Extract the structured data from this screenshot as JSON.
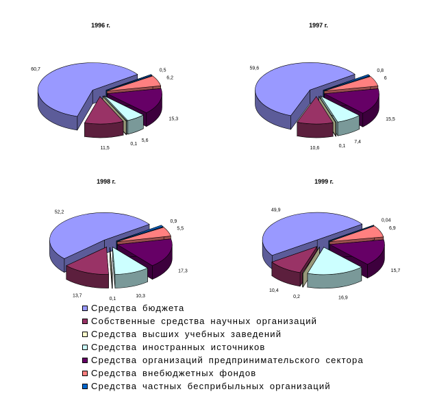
{
  "chart_data": [
    {
      "type": "pie",
      "title": "1996 г.",
      "categories": [
        "Средства бюджета",
        "Собственные средства научных организаций",
        "Средства высших учебных заведений",
        "Средства иностранных источников",
        "Средства организаций предпринимательского сектора",
        "Средства внебюджетных фондов",
        "Средства частных бесприбыльных организаций"
      ],
      "values": [
        60.7,
        11.5,
        0.1,
        5.6,
        15.3,
        6.2,
        0.5
      ],
      "labels": [
        "60,7",
        "11,5",
        "0,1",
        "5,6",
        "15,3",
        "6,2",
        "0,5"
      ]
    },
    {
      "type": "pie",
      "title": "1997 г.",
      "categories": [
        "Средства бюджета",
        "Собственные средства научных организаций",
        "Средства высших учебных заведений",
        "Средства иностранных источников",
        "Средства организаций предпринимательского сектора",
        "Средства внебюджетных фондов",
        "Средства частных бесприбыльных организаций"
      ],
      "values": [
        59.6,
        10.6,
        0.1,
        7.4,
        15.5,
        6,
        0.8
      ],
      "labels": [
        "59,6",
        "10,6",
        "0,1",
        "7,4",
        "15,5",
        "6",
        "0,8"
      ]
    },
    {
      "type": "pie",
      "title": "1998 г.",
      "categories": [
        "Средства бюджета",
        "Собственные средства научных организаций",
        "Средства высших учебных заведений",
        "Средства иностранных источников",
        "Средства организаций предпринимательского сектора",
        "Средства внебюджетных фондов",
        "Средства частных бесприбыльных организаций"
      ],
      "values": [
        52.2,
        13.7,
        0.1,
        10.3,
        17.3,
        5.5,
        0.9
      ],
      "labels": [
        "52,2",
        "13,7",
        "0,1",
        "10,3",
        "17,3",
        "5,5",
        "0,9"
      ]
    },
    {
      "type": "pie",
      "title": "1999 г.",
      "categories": [
        "Средства бюджета",
        "Собственные средства научных организаций",
        "Средства высших учебных заведений",
        "Средства иностранных источников",
        "Средства организаций предпринимательского сектора",
        "Средства внебюджетных фондов",
        "Средства частных бесприбыльных организаций"
      ],
      "values": [
        49.9,
        10.4,
        0.2,
        16.9,
        15.7,
        6.9,
        0.04
      ],
      "labels": [
        "49,9",
        "10,4",
        "0,2",
        "16,9",
        "15,7",
        "6,9",
        "0,04"
      ]
    }
  ],
  "legend": [
    {
      "label": "Средства бюджета",
      "color": "#9999ff"
    },
    {
      "label": "Собственные средства научных организаций",
      "color": "#993366"
    },
    {
      "label": "Средства высших учебных заведений",
      "color": "#ffffcc"
    },
    {
      "label": "Средства иностранных источников",
      "color": "#ccffff"
    },
    {
      "label": "Средства организаций предпринимательского сектора",
      "color": "#660066"
    },
    {
      "label": "Средства внебюджетных фондов",
      "color": "#ff8080"
    },
    {
      "label": "Средства частных бесприбыльных организаций",
      "color": "#0066cc"
    }
  ]
}
